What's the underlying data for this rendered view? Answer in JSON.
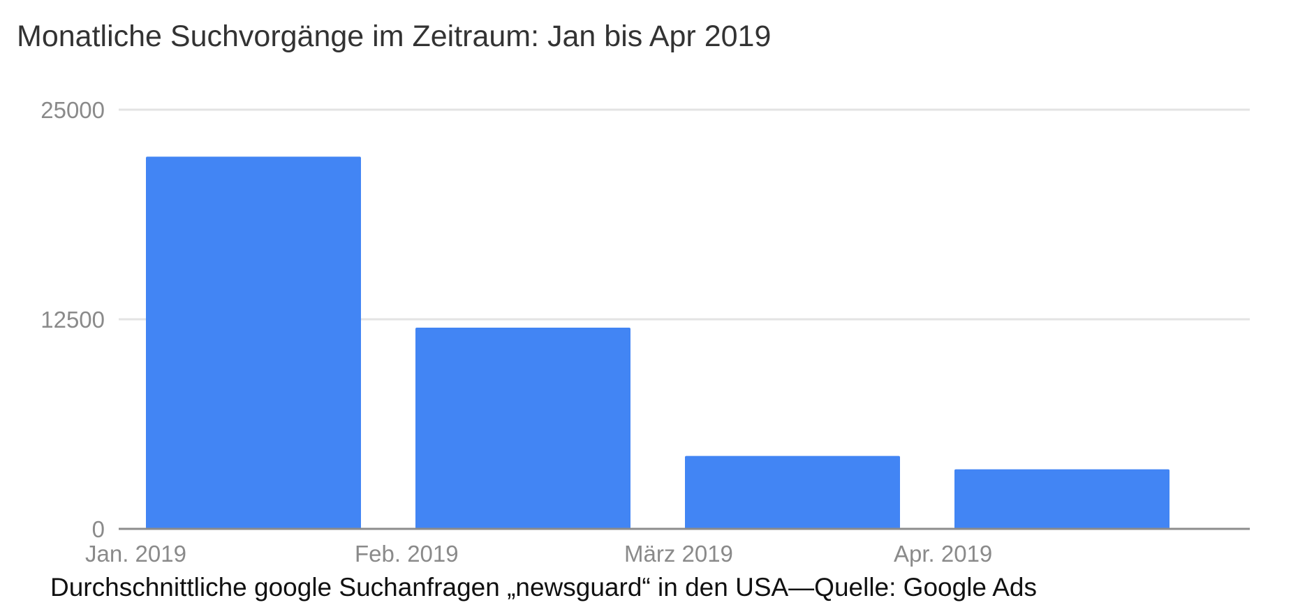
{
  "chart_data": {
    "type": "bar",
    "title": "Monatliche Suchvorgänge im Zeitraum: Jan bis Apr 2019",
    "categories": [
      "Jan. 2019",
      "Feb. 2019",
      "März 2019",
      "Apr. 2019"
    ],
    "series": [
      {
        "values": [
          22200,
          12000,
          4350,
          3550
        ],
        "color": "#4285f4"
      }
    ],
    "y_ticks": [
      "0",
      "12500",
      "25000"
    ],
    "ylim": [
      0,
      25000
    ],
    "grid": true,
    "legend": "none",
    "colors": {
      "bar": "#4285f4",
      "grid": "#e3e3e3",
      "axis": "#8c8c8c"
    }
  },
  "caption": "Durchschnittliche google Suchanfragen „newsguard“ in den USA—Quelle: Google Ads"
}
